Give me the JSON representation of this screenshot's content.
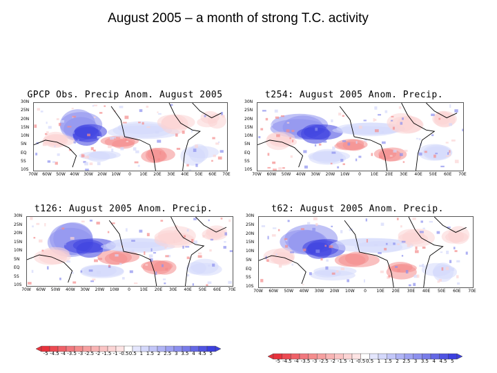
{
  "slide": {
    "title": "August 2005 – a month of strong T.C. activity"
  },
  "panels": [
    {
      "title": "GPCP Obs. Precip  Anom. August 2005"
    },
    {
      "title": "t254: August 2005 Anom. Precip."
    },
    {
      "title": "t126: August 2005 Anom. Precip."
    },
    {
      "title": "t62: August 2005 Anom. Precip."
    }
  ],
  "lat_labels": [
    "30N",
    "25N",
    "20N",
    "15N",
    "10N",
    "5N",
    "EQ",
    "5S",
    "10S"
  ],
  "lon_labels": [
    "70W",
    "60W",
    "50W",
    "40W",
    "30W",
    "20W",
    "10W",
    "0",
    "10E",
    "20E",
    "30E",
    "40E",
    "50E",
    "60E",
    "70E"
  ],
  "colorbar_left": {
    "labels": [
      "-5",
      "-4.5",
      "-4",
      "-3.5",
      "-3",
      "-2.5",
      "-2",
      "-1.5",
      "-1",
      "-0.5",
      "0.5",
      "1",
      "1.5",
      "2",
      "2.5",
      "3",
      "3.5",
      "4",
      "4.5",
      "5"
    ]
  },
  "colorbar_right": {
    "labels": [
      "-5",
      "-4.5",
      "-4",
      "-3.5",
      "-3",
      "-2.5",
      "-2",
      "-1.5",
      "-1",
      "-0.5",
      "0.5",
      "1",
      "1.5",
      "2",
      "2.5",
      "3",
      "3.5",
      "4",
      "4.5",
      "5"
    ]
  },
  "colors": {
    "neg_strong": "#e8323c",
    "neg_mid": "#f48c8c",
    "neg_light": "#fbd4d4",
    "pos_light": "#d4d8fb",
    "pos_mid": "#8c90ee",
    "pos_strong": "#3c40e0"
  }
}
